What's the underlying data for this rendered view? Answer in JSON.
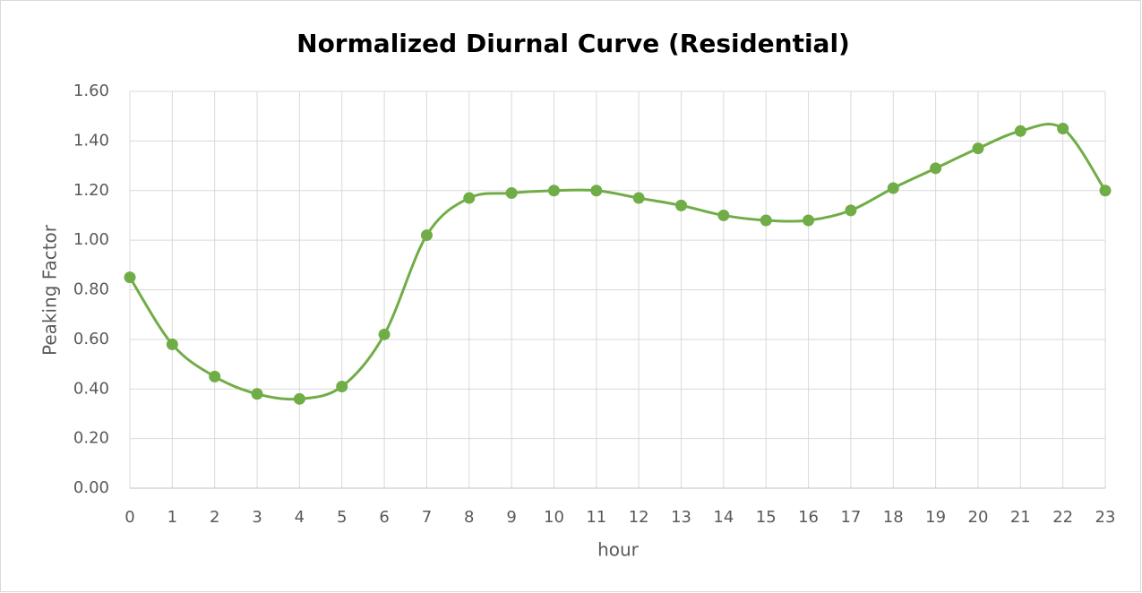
{
  "chart_data": {
    "type": "line",
    "title": "Normalized Diurnal Curve (Residential)",
    "x_label": "hour",
    "y_label": "Peaking Factor",
    "x": [
      0,
      1,
      2,
      3,
      4,
      5,
      6,
      7,
      8,
      9,
      10,
      11,
      12,
      13,
      14,
      15,
      16,
      17,
      18,
      19,
      20,
      21,
      22,
      23
    ],
    "values": [
      0.85,
      0.58,
      0.45,
      0.38,
      0.36,
      0.41,
      0.62,
      1.02,
      1.17,
      1.19,
      1.2,
      1.2,
      1.17,
      1.14,
      1.1,
      1.08,
      1.08,
      1.12,
      1.21,
      1.29,
      1.37,
      1.44,
      1.45,
      1.2
    ],
    "color": "#70ad47",
    "smooth": true,
    "markers": true,
    "xlim": [
      0,
      23
    ],
    "xticks": [
      0,
      1,
      2,
      3,
      4,
      5,
      6,
      7,
      8,
      9,
      10,
      11,
      12,
      13,
      14,
      15,
      16,
      17,
      18,
      19,
      20,
      21,
      22,
      23
    ],
    "ylim": [
      0,
      1.6
    ],
    "yticks": [
      {
        "value": 0,
        "label": "0.00"
      },
      {
        "value": 0.2,
        "label": "0.20"
      },
      {
        "value": 0.4,
        "label": "0.40"
      },
      {
        "value": 0.6,
        "label": "0.60"
      },
      {
        "value": 0.8,
        "label": "0.80"
      },
      {
        "value": 1.0,
        "label": "1.00"
      },
      {
        "value": 1.2,
        "label": "1.20"
      },
      {
        "value": 1.4,
        "label": "1.40"
      },
      {
        "value": 1.6,
        "label": "1.60"
      }
    ],
    "grid": true
  }
}
